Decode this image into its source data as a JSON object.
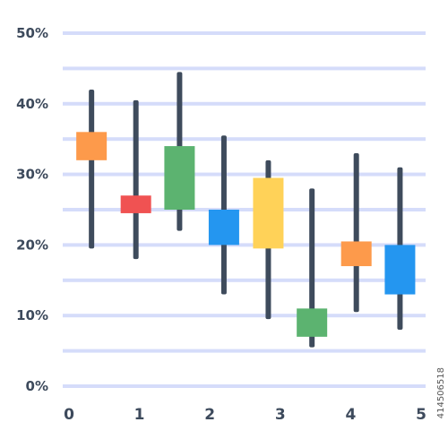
{
  "chart_data": {
    "type": "candlestick",
    "title": "",
    "xlabel": "",
    "ylabel": "",
    "x_ticks": [
      "0",
      "1",
      "2",
      "3",
      "4",
      "5"
    ],
    "y_ticks": [
      "0%",
      "10%",
      "20%",
      "30%",
      "40%",
      "50%"
    ],
    "xlim": [
      0,
      5
    ],
    "ylim": [
      0,
      50
    ],
    "grid": true,
    "series": [
      {
        "x": 0.32,
        "low": 19.5,
        "open": 32,
        "close": 36,
        "high": 42,
        "color": "#fd9a4b"
      },
      {
        "x": 0.95,
        "low": 18,
        "open": 24.5,
        "close": 27,
        "high": 40.5,
        "color": "#f05252"
      },
      {
        "x": 1.57,
        "low": 22,
        "open": 25,
        "close": 34,
        "high": 44.5,
        "color": "#5cb370"
      },
      {
        "x": 2.2,
        "low": 13,
        "open": 20,
        "close": 25,
        "high": 35.5,
        "color": "#2496f0"
      },
      {
        "x": 2.83,
        "low": 9.5,
        "open": 19.5,
        "close": 29.5,
        "high": 32,
        "color": "#ffd258"
      },
      {
        "x": 3.45,
        "low": 5.5,
        "open": 7,
        "close": 11,
        "high": 28,
        "color": "#5cb370"
      },
      {
        "x": 4.08,
        "low": 10.5,
        "open": 17,
        "close": 20.5,
        "high": 33,
        "color": "#fd9a4b"
      },
      {
        "x": 4.7,
        "low": 8,
        "open": 13,
        "close": 20,
        "high": 31,
        "color": "#2496f0"
      }
    ],
    "colors": {
      "grid": "#d5dcfa",
      "wick": "#3e4b5c",
      "tick_text": "#3d4a5c"
    }
  },
  "stock_id": "414506518"
}
